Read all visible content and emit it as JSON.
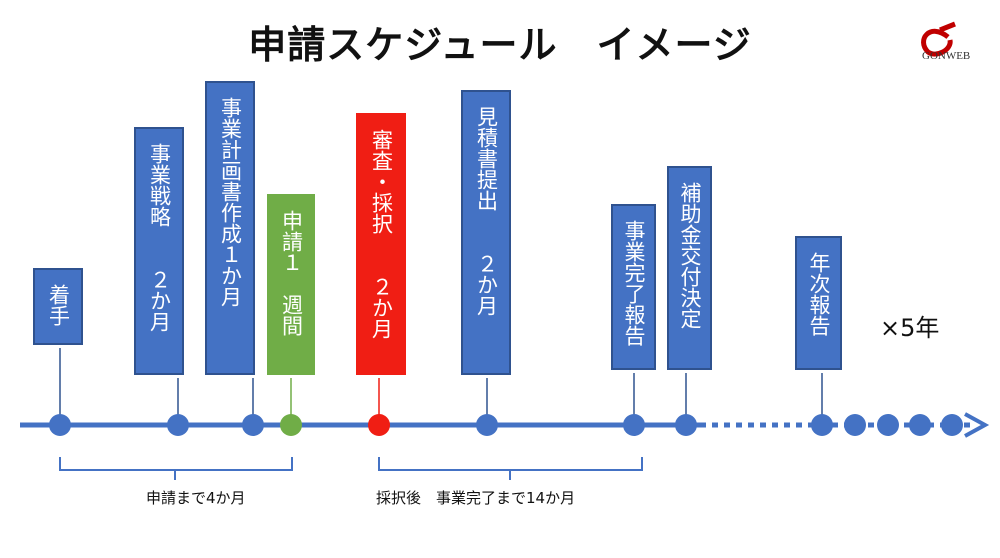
{
  "title": "申請スケジュール　イメージ",
  "logo": "GONWEB",
  "steps": [
    {
      "label": "着手",
      "color": "#4472c4"
    },
    {
      "label": "事業戦略　　２か月",
      "color": "#4472c4"
    },
    {
      "label": "事業計画書作成１か月",
      "color": "#4472c4"
    },
    {
      "label": "申請１　週間",
      "color": "#70ad47"
    },
    {
      "label": "審査・採択　　２か月",
      "color": "#f01e14"
    },
    {
      "label": "見積書提出　　２か月",
      "color": "#4472c4"
    },
    {
      "label": "事業完了報告",
      "color": "#4472c4"
    },
    {
      "label": "補助金交付決定",
      "color": "#4472c4"
    },
    {
      "label": "年次報告",
      "color": "#4472c4"
    }
  ],
  "repeat": "×5年",
  "brackets": [
    "申請まで4か月",
    "採択後　事業完了まで14か月"
  ]
}
